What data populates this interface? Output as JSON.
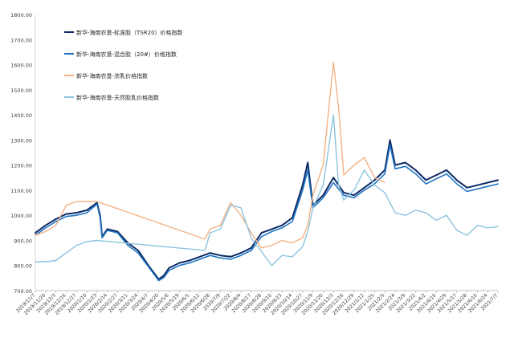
{
  "chart_data": {
    "type": "line",
    "title": "",
    "xlabel": "",
    "ylabel": "",
    "ylim": [
      700,
      1800
    ],
    "yticks": [
      700,
      800,
      900,
      1000,
      1100,
      1200,
      1300,
      1400,
      1500,
      1600,
      1700,
      1800
    ],
    "ytick_labels": [
      "700.00",
      "800.00",
      "900.00",
      "1000.00",
      "1100.00",
      "1200.00",
      "1300.00",
      "1400.00",
      "1500.00",
      "1600.00",
      "1700.00",
      "1800.00"
    ],
    "x_tick_labels": [
      "2019/11/7",
      "2019/11/20",
      "2019/12/3",
      "2019/12/16",
      "2019/12/27",
      "2020/1/10",
      "2020/1/23",
      "2020/2/14",
      "2020/2/27",
      "2020/3/11",
      "2020/3/24",
      "2020/4/7",
      "2020/4/20",
      "2020/5/6",
      "2020/5/19",
      "2020/6/1",
      "2020/6/12",
      "2020/6/28",
      "2020/7/9",
      "2020/7/22",
      "2020/8/4",
      "2020/8/17",
      "2020/8/28",
      "2020/9/10",
      "2020/9/23",
      "2020/10/14",
      "2020/10/27",
      "2020/11/9",
      "2020/11/20",
      "2020/12/3",
      "2020/12/16",
      "2020/12/29",
      "2021/1/12",
      "2021/1/25",
      "2021/2/5",
      "2021/2/24",
      "2021/3/9",
      "2021/3/22",
      "2021/4/2",
      "2021/4/16",
      "2021/4/29",
      "2021/5/17",
      "2021/5/28",
      "2021/6/10",
      "2021/6/24",
      "2021/7/7"
    ],
    "grid": false,
    "legend_position": "top-left",
    "series": [
      {
        "name": "新华-海南农垦-标准胶（TSR20）价格指数",
        "color": "#0b2a66",
        "points": [
          [
            0,
            930
          ],
          [
            1,
            960
          ],
          [
            2,
            985
          ],
          [
            3,
            1005
          ],
          [
            4,
            1010
          ],
          [
            5,
            1020
          ],
          [
            6,
            1050
          ],
          [
            6.3,
            1000
          ],
          [
            6.5,
            915
          ],
          [
            7,
            945
          ],
          [
            8,
            935
          ],
          [
            9,
            890
          ],
          [
            10,
            860
          ],
          [
            11,
            800
          ],
          [
            12,
            745
          ],
          [
            12.5,
            760
          ],
          [
            13,
            790
          ],
          [
            14,
            810
          ],
          [
            15,
            820
          ],
          [
            16,
            835
          ],
          [
            17,
            850
          ],
          [
            18,
            840
          ],
          [
            19,
            835
          ],
          [
            20,
            850
          ],
          [
            21,
            870
          ],
          [
            22,
            930
          ],
          [
            23,
            945
          ],
          [
            24,
            960
          ],
          [
            25,
            990
          ],
          [
            26,
            1120
          ],
          [
            26.5,
            1210
          ],
          [
            27,
            1040
          ],
          [
            28,
            1080
          ],
          [
            29,
            1150
          ],
          [
            30,
            1090
          ],
          [
            31,
            1080
          ],
          [
            32,
            1110
          ],
          [
            33,
            1140
          ],
          [
            34,
            1180
          ],
          [
            34.5,
            1300
          ],
          [
            35,
            1200
          ],
          [
            36,
            1210
          ],
          [
            37,
            1180
          ],
          [
            38,
            1140
          ],
          [
            39,
            1160
          ],
          [
            40,
            1180
          ],
          [
            41,
            1140
          ],
          [
            42,
            1110
          ],
          [
            43,
            1120
          ],
          [
            44,
            1130
          ],
          [
            45,
            1140
          ]
        ]
      },
      {
        "name": "新华-海南农垦-混合胶（20#）价格指数",
        "color": "#1f74c2",
        "points": [
          [
            0,
            920
          ],
          [
            1,
            950
          ],
          [
            2,
            975
          ],
          [
            3,
            995
          ],
          [
            4,
            1000
          ],
          [
            5,
            1010
          ],
          [
            6,
            1045
          ],
          [
            6.3,
            990
          ],
          [
            6.5,
            910
          ],
          [
            7,
            940
          ],
          [
            8,
            930
          ],
          [
            9,
            880
          ],
          [
            10,
            850
          ],
          [
            11,
            795
          ],
          [
            12,
            740
          ],
          [
            12.5,
            752
          ],
          [
            13,
            780
          ],
          [
            14,
            800
          ],
          [
            15,
            810
          ],
          [
            16,
            825
          ],
          [
            17,
            840
          ],
          [
            18,
            830
          ],
          [
            19,
            825
          ],
          [
            20,
            840
          ],
          [
            21,
            860
          ],
          [
            22,
            915
          ],
          [
            23,
            935
          ],
          [
            24,
            950
          ],
          [
            25,
            975
          ],
          [
            26,
            1100
          ],
          [
            26.5,
            1180
          ],
          [
            27,
            1030
          ],
          [
            28,
            1070
          ],
          [
            29,
            1130
          ],
          [
            30,
            1080
          ],
          [
            31,
            1070
          ],
          [
            32,
            1100
          ],
          [
            33,
            1125
          ],
          [
            34,
            1165
          ],
          [
            34.5,
            1280
          ],
          [
            35,
            1185
          ],
          [
            36,
            1195
          ],
          [
            37,
            1165
          ],
          [
            38,
            1125
          ],
          [
            39,
            1145
          ],
          [
            40,
            1165
          ],
          [
            41,
            1125
          ],
          [
            42,
            1095
          ],
          [
            43,
            1105
          ],
          [
            44,
            1115
          ],
          [
            45,
            1125
          ]
        ]
      },
      {
        "name": "新华-海南农垦-浓乳价格指数",
        "color": "#f4b183",
        "points": [
          [
            0,
            920
          ],
          [
            1,
            935
          ],
          [
            2,
            960
          ],
          [
            3,
            1040
          ],
          [
            4,
            1055
          ],
          [
            5,
            1055
          ],
          [
            6,
            1055
          ],
          [
            16.5,
            905
          ],
          [
            17,
            945
          ],
          [
            18,
            960
          ],
          [
            19,
            1050
          ],
          [
            20,
            1000
          ],
          [
            21,
            930
          ],
          [
            22,
            870
          ],
          [
            23,
            880
          ],
          [
            24,
            900
          ],
          [
            25,
            890
          ],
          [
            26,
            910
          ],
          [
            26.5,
            960
          ],
          [
            27,
            1080
          ],
          [
            28,
            1200
          ],
          [
            29,
            1610
          ],
          [
            29.5,
            1430
          ],
          [
            30,
            1160
          ],
          [
            31,
            1200
          ],
          [
            32,
            1230
          ],
          [
            33,
            1150
          ],
          [
            34,
            1130
          ]
        ]
      },
      {
        "name": "新华-海南农垦-天然胶乳价格指数",
        "color": "#8cc4e0",
        "points": [
          [
            0,
            815
          ],
          [
            1,
            815
          ],
          [
            2,
            820
          ],
          [
            3,
            850
          ],
          [
            4,
            880
          ],
          [
            5,
            895
          ],
          [
            6,
            900
          ],
          [
            16.5,
            860
          ],
          [
            17,
            930
          ],
          [
            18,
            945
          ],
          [
            19,
            1040
          ],
          [
            20,
            1030
          ],
          [
            21,
            910
          ],
          [
            22,
            855
          ],
          [
            23,
            800
          ],
          [
            24,
            840
          ],
          [
            25,
            835
          ],
          [
            26,
            875
          ],
          [
            26.5,
            935
          ],
          [
            27,
            1030
          ],
          [
            28,
            1120
          ],
          [
            29,
            1400
          ],
          [
            29.5,
            1120
          ],
          [
            30,
            1060
          ],
          [
            31,
            1100
          ],
          [
            32,
            1180
          ],
          [
            33,
            1120
          ],
          [
            34,
            1090
          ],
          [
            35,
            1010
          ],
          [
            36,
            1000
          ],
          [
            37,
            1020
          ],
          [
            38,
            1010
          ],
          [
            39,
            980
          ],
          [
            40,
            1000
          ],
          [
            41,
            940
          ],
          [
            42,
            920
          ],
          [
            43,
            960
          ],
          [
            44,
            950
          ],
          [
            45,
            955
          ]
        ]
      }
    ]
  }
}
